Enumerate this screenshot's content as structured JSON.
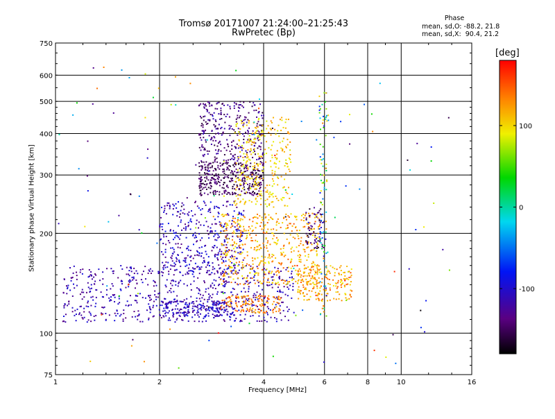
{
  "title": {
    "line1": "Tromsø 20171007 21:24:00–21:25:43",
    "line2": "RwPretec (Bp)"
  },
  "phase_stats": {
    "header": "Phase",
    "o_line": "mean, sd,O: -88.2, 21.8",
    "x_line": "mean, sd,X:  90.4, 21.2"
  },
  "colorbar": {
    "unit_label": "[deg]",
    "range": [
      -180,
      180
    ],
    "tick_labels": [
      "100",
      "0",
      "-100"
    ],
    "tick_values": [
      100,
      0,
      -100
    ]
  },
  "chart_data": {
    "type": "scatter",
    "xlabel": "Frequency [MHz]",
    "ylabel": "Stationary phase Virtual Height [km]",
    "xscale": "log",
    "yscale": "log",
    "xlim": [
      1,
      16
    ],
    "ylim": [
      75,
      750
    ],
    "xticks": [
      1,
      2,
      4,
      6,
      8,
      10,
      16
    ],
    "xtick_labels": [
      "1",
      "2",
      "4",
      "6",
      "8",
      "10",
      "16"
    ],
    "yticks": [
      75,
      100,
      200,
      300,
      400,
      500,
      600,
      750
    ],
    "ytick_labels": [
      "75",
      "100",
      "200",
      "300",
      "400",
      "500",
      "600",
      "750"
    ],
    "grid": true,
    "color_by": "phase_deg",
    "clusters": [
      {
        "x": [
          1.05,
          4.9
        ],
        "y": [
          108,
          160
        ],
        "phase": [
          -140,
          -90
        ],
        "n": 650
      },
      {
        "x": [
          2.0,
          3.3
        ],
        "y": [
          112,
          125
        ],
        "phase": [
          -130,
          -85
        ],
        "n": 200
      },
      {
        "x": [
          3.0,
          4.5
        ],
        "y": [
          115,
          130
        ],
        "phase": [
          110,
          160
        ],
        "n": 130
      },
      {
        "x": [
          2.0,
          3.5
        ],
        "y": [
          150,
          250
        ],
        "phase": [
          -140,
          -80
        ],
        "n": 400
      },
      {
        "x": [
          2.6,
          4.0
        ],
        "y": [
          260,
          330
        ],
        "phase": [
          -170,
          -130
        ],
        "n": 350
      },
      {
        "x": [
          2.6,
          4.0
        ],
        "y": [
          330,
          500
        ],
        "phase": [
          -160,
          -110
        ],
        "n": 300
      },
      {
        "x": [
          3.3,
          4.8
        ],
        "y": [
          240,
          450
        ],
        "phase": [
          80,
          130
        ],
        "n": 300
      },
      {
        "x": [
          3.0,
          5.8
        ],
        "y": [
          140,
          230
        ],
        "phase": [
          85,
          150
        ],
        "n": 500
      },
      {
        "x": [
          5.0,
          7.2
        ],
        "y": [
          125,
          160
        ],
        "phase": [
          90,
          150
        ],
        "n": 200
      },
      {
        "x": [
          5.3,
          6.0
        ],
        "y": [
          180,
          240
        ],
        "phase": [
          -170,
          -120
        ],
        "n": 60
      },
      {
        "x": [
          5.8,
          6.1
        ],
        "y": [
          110,
          550
        ],
        "phase": [
          -120,
          150
        ],
        "n": 100
      },
      {
        "x": [
          1.0,
          14.0
        ],
        "y": [
          78,
          650
        ],
        "phase": [
          -180,
          180
        ],
        "n": 140
      }
    ]
  }
}
